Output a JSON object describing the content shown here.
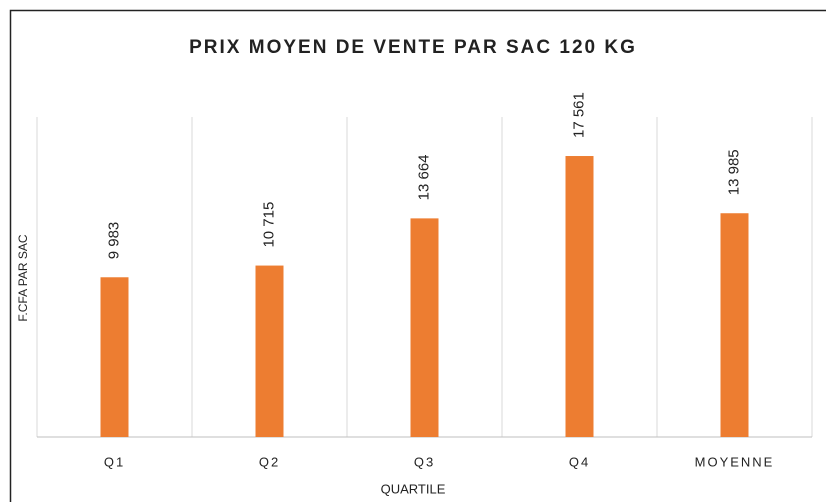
{
  "chart_data": {
    "type": "bar",
    "title": "PRIX MOYEN DE VENTE PAR SAC 120 KG",
    "x_label": "QUARTILE",
    "y_label": "F.CFA PAR SAC",
    "categories": [
      "Q1",
      "Q2",
      "Q3",
      "Q4",
      "MOYENNE"
    ],
    "values": [
      9983,
      10715,
      13664,
      17561,
      13985
    ],
    "value_labels": [
      "9 983",
      "10 715",
      "13 664",
      "17 561",
      "13 985"
    ],
    "color": "#ed7d31",
    "ylim": [
      0,
      20000
    ],
    "grid": true
  }
}
